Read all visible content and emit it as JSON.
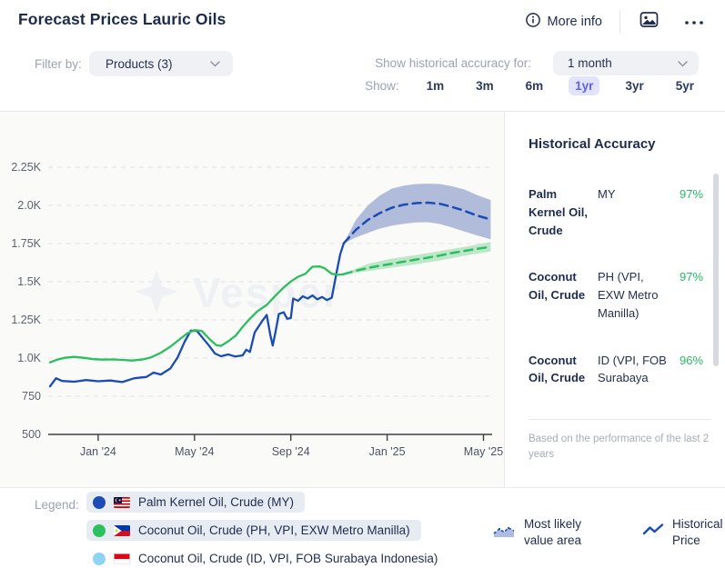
{
  "header": {
    "title": "Forecast Prices Lauric Oils",
    "more_info_label": "More info"
  },
  "filters": {
    "filter_by_label": "Filter by:",
    "products_dropdown_value": "Products (3)",
    "accuracy_for_label": "Show historical accuracy for:",
    "accuracy_dropdown_value": "1 month",
    "show_label": "Show:",
    "show_options": [
      {
        "label": "1m",
        "active": false
      },
      {
        "label": "3m",
        "active": false
      },
      {
        "label": "6m",
        "active": false
      },
      {
        "label": "1yr",
        "active": true
      },
      {
        "label": "3yr",
        "active": false
      },
      {
        "label": "5yr",
        "active": false
      }
    ],
    "active_option_colors": {
      "text": "#6064e3",
      "background": "#e2e3fc"
    }
  },
  "accuracy_panel": {
    "title": "Historical Accuracy",
    "rows": [
      {
        "product": "Palm Kernel Oil, Crude",
        "market": "MY",
        "accuracy": "97%"
      },
      {
        "product": "Coconut Oil, Crude",
        "market": "PH (VPI, EXW Metro Manilla)",
        "accuracy": "97%"
      },
      {
        "product": "Coconut Oil, Crude",
        "market": "ID (VPI, FOB Surabaya",
        "accuracy": "96%"
      }
    ],
    "accuracy_color": "#27ba64",
    "footnote": "Based on the performance of the last 2 years"
  },
  "legend": {
    "label": "Legend:",
    "items": [
      {
        "label": "Palm Kernel Oil, Crude (MY)",
        "dot_color": "#1d4db4",
        "flag": "malaysia",
        "selected": true
      },
      {
        "label": "Coconut Oil, Crude (PH, VPI, EXW Metro Manilla)",
        "dot_color": "#2dc05f",
        "flag": "philippines",
        "selected": true
      },
      {
        "label": "Coconut Oil, Crude (ID, VPI, FOB Surabaya Indonesia)",
        "dot_color": "#8fd3f3",
        "flag": "indonesia",
        "selected": false
      }
    ],
    "extras": [
      {
        "label": "Most likely value area",
        "icon": "forecast-band-icon"
      },
      {
        "label": "Historical Price",
        "icon": "line-icon"
      }
    ]
  },
  "watermark": "Vesper",
  "chart_data": {
    "type": "line",
    "title": "Forecast Prices Lauric Oils",
    "x_unit": "m = months since Nov 2023",
    "x_range": [
      0,
      18.5
    ],
    "x_ticks": [
      {
        "m": 2,
        "label": "Jan '24"
      },
      {
        "m": 6,
        "label": "May '24"
      },
      {
        "m": 10,
        "label": "Sep '24"
      },
      {
        "m": 14,
        "label": "Jan '25"
      },
      {
        "m": 18,
        "label": "May '25"
      }
    ],
    "y_range": [
      500,
      2460
    ],
    "y_ticks": [
      {
        "v": 500,
        "label": "500"
      },
      {
        "v": 750,
        "label": "750"
      },
      {
        "v": 1000,
        "label": "1.0K"
      },
      {
        "v": 1250,
        "label": "1.25K"
      },
      {
        "v": 1500,
        "label": "1.5K"
      },
      {
        "v": 1750,
        "label": "1.75K"
      },
      {
        "v": 2000,
        "label": "2.0K"
      },
      {
        "v": 2250,
        "label": "2.25K"
      }
    ],
    "grid": "horizontal-dashed",
    "legend_position": "bottom",
    "series": [
      {
        "name": "Palm Kernel Oil, Crude (MY)",
        "color": "#1a4cb5",
        "band_color": "#a8b5d7",
        "history": [
          [
            0,
            815
          ],
          [
            0.25,
            868
          ],
          [
            0.5,
            850
          ],
          [
            1,
            845
          ],
          [
            1.5,
            856
          ],
          [
            2,
            848
          ],
          [
            2.5,
            853
          ],
          [
            3,
            843
          ],
          [
            3.5,
            868
          ],
          [
            4,
            876
          ],
          [
            4.3,
            905
          ],
          [
            4.6,
            892
          ],
          [
            5,
            932
          ],
          [
            5.3,
            1005
          ],
          [
            5.6,
            1110
          ],
          [
            5.85,
            1180
          ],
          [
            6.1,
            1178
          ],
          [
            6.35,
            1130
          ],
          [
            6.6,
            1082
          ],
          [
            6.85,
            1030
          ],
          [
            7.1,
            1012
          ],
          [
            7.4,
            1024
          ],
          [
            7.7,
            1010
          ],
          [
            8,
            1018
          ],
          [
            8.15,
            1055
          ],
          [
            8.3,
            1040
          ],
          [
            8.5,
            1168
          ],
          [
            8.8,
            1240
          ],
          [
            9,
            1283
          ],
          [
            9.15,
            1150
          ],
          [
            9.25,
            1082
          ],
          [
            9.35,
            1160
          ],
          [
            9.5,
            1288
          ],
          [
            9.7,
            1300
          ],
          [
            9.85,
            1258
          ],
          [
            10,
            1262
          ],
          [
            10.1,
            1390
          ],
          [
            10.3,
            1375
          ],
          [
            10.5,
            1405
          ],
          [
            10.7,
            1390
          ],
          [
            10.9,
            1410
          ],
          [
            11.1,
            1385
          ],
          [
            11.3,
            1400
          ],
          [
            11.5,
            1380
          ],
          [
            11.7,
            1395
          ],
          [
            11.9,
            1560
          ],
          [
            12.05,
            1680
          ],
          [
            12.2,
            1752
          ]
        ],
        "forecast": [
          [
            12.2,
            1752
          ],
          [
            12.7,
            1840
          ],
          [
            13.2,
            1905
          ],
          [
            13.7,
            1950
          ],
          [
            14.2,
            1985
          ],
          [
            14.7,
            2005
          ],
          [
            15.2,
            2015
          ],
          [
            15.7,
            2018
          ],
          [
            16.2,
            2010
          ],
          [
            16.7,
            1990
          ],
          [
            17.2,
            1965
          ],
          [
            17.7,
            1935
          ],
          [
            18.3,
            1908
          ]
        ],
        "band_upper": [
          [
            12.2,
            1752
          ],
          [
            12.7,
            1905
          ],
          [
            13.2,
            2000
          ],
          [
            13.7,
            2065
          ],
          [
            14.2,
            2110
          ],
          [
            14.7,
            2130
          ],
          [
            15.2,
            2140
          ],
          [
            15.7,
            2142
          ],
          [
            16.2,
            2140
          ],
          [
            16.7,
            2125
          ],
          [
            17.2,
            2105
          ],
          [
            17.7,
            2070
          ],
          [
            18.3,
            2035
          ]
        ],
        "band_lower": [
          [
            12.2,
            1752
          ],
          [
            12.7,
            1790
          ],
          [
            13.2,
            1820
          ],
          [
            13.7,
            1848
          ],
          [
            14.2,
            1868
          ],
          [
            14.7,
            1880
          ],
          [
            15.2,
            1888
          ],
          [
            15.7,
            1890
          ],
          [
            16.2,
            1878
          ],
          [
            16.7,
            1855
          ],
          [
            17.2,
            1830
          ],
          [
            17.7,
            1805
          ],
          [
            18.3,
            1778
          ]
        ]
      },
      {
        "name": "Coconut Oil, Crude (PH, VPI, EXW Metro Manilla)",
        "color": "#2cbf5f",
        "band_color": "#b7e3c2",
        "history": [
          [
            0,
            972
          ],
          [
            0.3,
            990
          ],
          [
            0.6,
            1002
          ],
          [
            1,
            1008
          ],
          [
            1.4,
            1002
          ],
          [
            1.8,
            993
          ],
          [
            2.2,
            990
          ],
          [
            2.6,
            991
          ],
          [
            3,
            988
          ],
          [
            3.4,
            984
          ],
          [
            3.8,
            990
          ],
          [
            4.2,
            1005
          ],
          [
            4.6,
            1035
          ],
          [
            5,
            1075
          ],
          [
            5.4,
            1125
          ],
          [
            5.7,
            1162
          ],
          [
            6,
            1183
          ],
          [
            6.3,
            1178
          ],
          [
            6.6,
            1128
          ],
          [
            6.9,
            1085
          ],
          [
            7.1,
            1080
          ],
          [
            7.4,
            1110
          ],
          [
            7.7,
            1145
          ],
          [
            8,
            1205
          ],
          [
            8.3,
            1258
          ],
          [
            8.6,
            1305
          ],
          [
            9,
            1348
          ],
          [
            9.4,
            1415
          ],
          [
            9.7,
            1462
          ],
          [
            10,
            1502
          ],
          [
            10.3,
            1532
          ],
          [
            10.6,
            1552
          ],
          [
            10.9,
            1598
          ],
          [
            11.2,
            1600
          ],
          [
            11.4,
            1588
          ],
          [
            11.7,
            1552
          ],
          [
            12,
            1545
          ],
          [
            12.2,
            1550
          ]
        ],
        "forecast": [
          [
            12.2,
            1550
          ],
          [
            12.7,
            1572
          ],
          [
            13.2,
            1590
          ],
          [
            13.7,
            1605
          ],
          [
            14.2,
            1618
          ],
          [
            14.7,
            1632
          ],
          [
            15.2,
            1645
          ],
          [
            15.7,
            1658
          ],
          [
            16.2,
            1672
          ],
          [
            16.7,
            1688
          ],
          [
            17.2,
            1702
          ],
          [
            17.7,
            1715
          ],
          [
            18.3,
            1728
          ]
        ],
        "band_upper": [
          [
            12.2,
            1552
          ],
          [
            13.2,
            1618
          ],
          [
            14.2,
            1652
          ],
          [
            15.2,
            1675
          ],
          [
            16.2,
            1702
          ],
          [
            17.2,
            1728
          ],
          [
            18.3,
            1760
          ]
        ],
        "band_lower": [
          [
            12.2,
            1548
          ],
          [
            13.2,
            1570
          ],
          [
            14.2,
            1592
          ],
          [
            15.2,
            1614
          ],
          [
            16.2,
            1640
          ],
          [
            17.2,
            1670
          ],
          [
            18.3,
            1698
          ]
        ]
      },
      {
        "name": "Coconut Oil, Crude (ID, VPI, FOB Surabaya Indonesia)",
        "color": "#8fd3f3",
        "history": [],
        "forecast": []
      }
    ]
  }
}
